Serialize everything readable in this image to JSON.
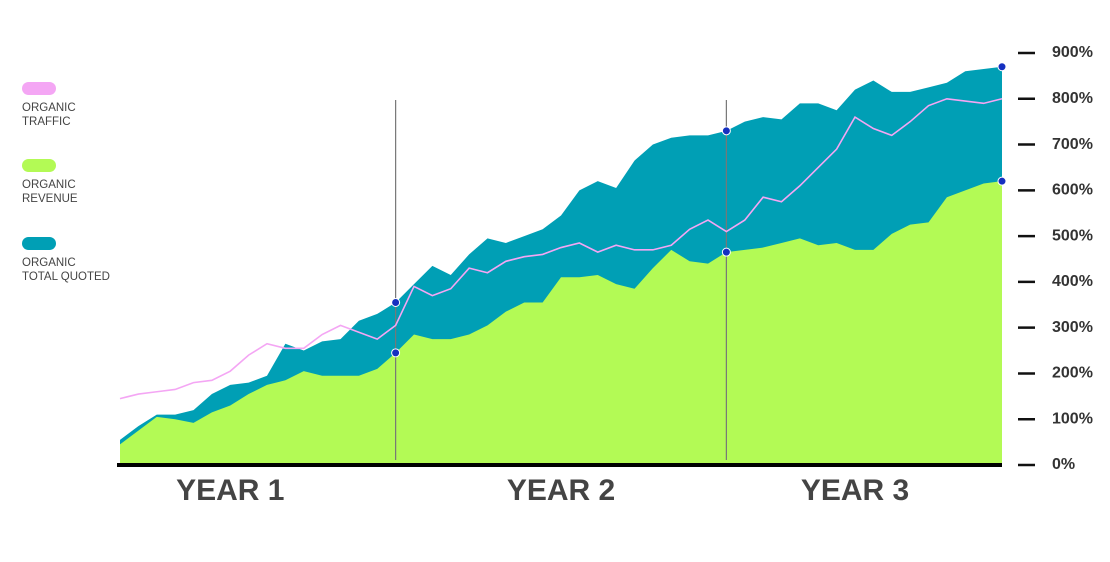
{
  "chart_data": {
    "type": "area",
    "categories": [
      null,
      null,
      null,
      null,
      null,
      null,
      "YEAR 1",
      null,
      null,
      null,
      null,
      null,
      null,
      null,
      null,
      null,
      null,
      null,
      null,
      null,
      null,
      null,
      null,
      null,
      "YEAR 2",
      null,
      null,
      null,
      null,
      null,
      null,
      null,
      null,
      null,
      null,
      null,
      null,
      null,
      null,
      null,
      "YEAR 3",
      null,
      null,
      null,
      null,
      null,
      null,
      null,
      null
    ],
    "series": [
      {
        "name": "ORGANIC\nTRAFFIC",
        "type": "line",
        "color": "#f4a6f4",
        "values": [
          145,
          155,
          160,
          165,
          180,
          185,
          205,
          240,
          265,
          255,
          255,
          285,
          305,
          290,
          275,
          305,
          390,
          370,
          385,
          430,
          420,
          445,
          455,
          460,
          475,
          485,
          465,
          480,
          470,
          470,
          480,
          515,
          535,
          510,
          535,
          585,
          575,
          610,
          650,
          690,
          760,
          735,
          720,
          750,
          785,
          800,
          795,
          790,
          800
        ]
      },
      {
        "name": "ORGANIC\nREVENUE",
        "type": "area",
        "color": "#b3fa55",
        "values": [
          45,
          75,
          105,
          100,
          92,
          115,
          130,
          155,
          175,
          185,
          205,
          195,
          195,
          195,
          210,
          245,
          285,
          275,
          275,
          285,
          305,
          335,
          355,
          355,
          410,
          410,
          415,
          395,
          385,
          430,
          470,
          445,
          440,
          465,
          470,
          475,
          485,
          495,
          480,
          485,
          470,
          470,
          505,
          525,
          530,
          585,
          600,
          615,
          620
        ]
      },
      {
        "name": "ORGANIC\nTOTAL QUOTED",
        "type": "area",
        "color": "#009fb5",
        "values": [
          55,
          85,
          110,
          110,
          120,
          155,
          175,
          180,
          195,
          265,
          250,
          270,
          275,
          315,
          330,
          355,
          395,
          435,
          415,
          460,
          495,
          485,
          500,
          515,
          545,
          600,
          620,
          605,
          665,
          700,
          715,
          720,
          720,
          730,
          750,
          760,
          755,
          790,
          790,
          775,
          820,
          840,
          815,
          815,
          825,
          835,
          860,
          865,
          870
        ]
      }
    ],
    "ylim": [
      0,
      900
    ],
    "yticks": [
      {
        "value": 0,
        "label": "0%"
      },
      {
        "value": 100,
        "label": "100%"
      },
      {
        "value": 200,
        "label": "200%"
      },
      {
        "value": 300,
        "label": "300%"
      },
      {
        "value": 400,
        "label": "400%"
      },
      {
        "value": 500,
        "label": "500%"
      },
      {
        "value": 600,
        "label": "600%"
      },
      {
        "value": 700,
        "label": "700%"
      },
      {
        "value": 800,
        "label": "800%"
      },
      {
        "value": 900,
        "label": "900%"
      }
    ],
    "legend": "left"
  }
}
